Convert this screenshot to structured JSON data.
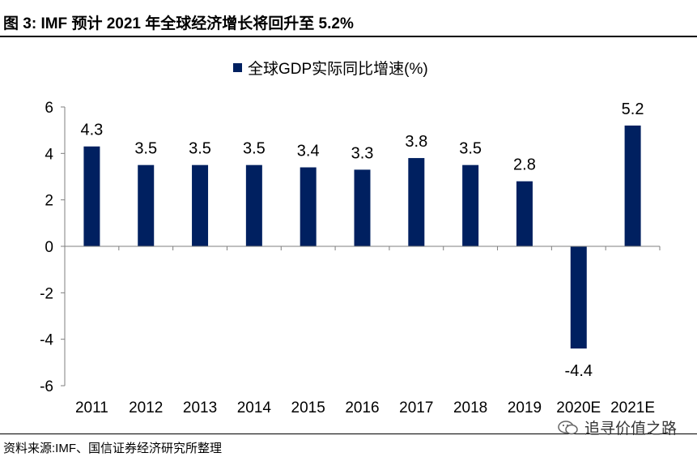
{
  "header": {
    "title": "图 3:  IMF 预计 2021 年全球经济增长将回升至 5.2%"
  },
  "footer": {
    "source": "资料来源:IMF、国信证券经济研究所整理",
    "watermark": "追寻价值之路",
    "watermark_icon": "wechat-icon"
  },
  "colors": {
    "bar": "#002060",
    "axis": "#7f7f7f"
  },
  "chart_data": {
    "type": "bar",
    "categories": [
      "2011",
      "2012",
      "2013",
      "2014",
      "2015",
      "2016",
      "2017",
      "2018",
      "2019",
      "2020E",
      "2021E"
    ],
    "series": [
      {
        "name": "全球GDP实际同比增速(%)",
        "values": [
          4.3,
          3.5,
          3.5,
          3.5,
          3.4,
          3.3,
          3.8,
          3.5,
          2.8,
          -4.4,
          5.2
        ]
      }
    ],
    "data_labels": [
      "4.3",
      "3.5",
      "3.5",
      "3.5",
      "3.4",
      "3.3",
      "3.8",
      "3.5",
      "2.8",
      "-4.4",
      "5.2"
    ],
    "y_ticks": [
      "6",
      "4",
      "2",
      "0",
      "-2",
      "-4",
      "-6"
    ],
    "ylim": [
      -6,
      6
    ],
    "legend_position": "top-center",
    "grid": false
  }
}
